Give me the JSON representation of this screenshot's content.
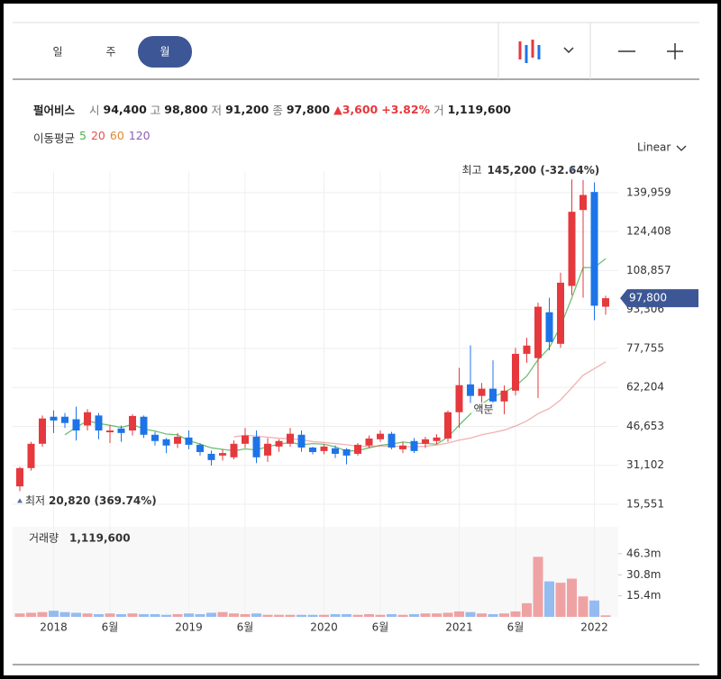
{
  "tabs": [
    "일",
    "주",
    "월"
  ],
  "scale_mode": "Linear",
  "header": {
    "name": "펄어비스",
    "quote": [
      {
        "label": "시",
        "value": "94,400"
      },
      {
        "label": "고",
        "value": "98,800"
      },
      {
        "label": "저",
        "value": "91,200"
      },
      {
        "label": "종",
        "value": "97,800"
      }
    ],
    "change": "3,600",
    "change_pct": "+3.82%",
    "volume_label": "거",
    "volume": "1,119,600"
  },
  "ma_legend": {
    "label": "이동평균",
    "periods": [
      5,
      20,
      60,
      120
    ],
    "colors": [
      "#4caf50",
      "#e0524f",
      "#e08a2e",
      "#8e5fb8"
    ]
  },
  "chart_data": {
    "type": "candlestick",
    "categories": [
      null,
      null,
      null,
      "2018",
      null,
      null,
      null,
      null,
      "6월",
      null,
      null,
      null,
      null,
      null,
      null,
      "2019",
      null,
      null,
      null,
      null,
      "6월",
      null,
      null,
      null,
      null,
      null,
      null,
      "2020",
      null,
      null,
      null,
      null,
      "6월",
      null,
      null,
      null,
      null,
      null,
      null,
      "2021",
      null,
      null,
      null,
      null,
      "6월",
      null,
      null,
      null,
      null,
      null,
      null,
      "2022",
      null
    ],
    "open": [
      22700,
      30000,
      39700,
      50500,
      50500,
      49500,
      47000,
      51000,
      44300,
      45800,
      45000,
      50500,
      43300,
      41500,
      39700,
      42200,
      39300,
      35700,
      35000,
      34300,
      39700,
      42500,
      35000,
      38600,
      39700,
      43300,
      38200,
      36800,
      37900,
      37500,
      35700,
      39000,
      41500,
      43700,
      37500,
      40800,
      39700,
      40800,
      41800,
      52300,
      63400,
      58800,
      61700,
      56600,
      60900,
      75600,
      73900,
      92200,
      79600,
      102700,
      133000,
      140200,
      94400
    ],
    "high": [
      30500,
      40500,
      51000,
      53000,
      52000,
      54500,
      53500,
      52000,
      47000,
      47000,
      51500,
      51000,
      44500,
      42000,
      44000,
      45000,
      40000,
      37000,
      37500,
      41000,
      46000,
      45000,
      42000,
      41500,
      46000,
      45000,
      38500,
      39500,
      39000,
      38000,
      40000,
      43000,
      45000,
      44500,
      40500,
      42000,
      42500,
      43500,
      53000,
      70000,
      79000,
      64000,
      73000,
      63000,
      78000,
      82000,
      96000,
      98000,
      108000,
      145200,
      145000,
      144000,
      98800
    ],
    "low": [
      20820,
      29000,
      38500,
      44000,
      46000,
      41000,
      45000,
      41500,
      40000,
      40500,
      43000,
      42000,
      39000,
      36000,
      38000,
      37500,
      35000,
      31000,
      33000,
      33500,
      38000,
      32000,
      32500,
      36500,
      38500,
      36500,
      35500,
      35500,
      34000,
      31500,
      35000,
      38000,
      40500,
      37500,
      36000,
      36000,
      38000,
      39500,
      40500,
      46000,
      56000,
      54000,
      54000,
      51500,
      59000,
      72000,
      58000,
      77000,
      78000,
      99000,
      98000,
      89000,
      91200
    ],
    "close": [
      30000,
      39700,
      49800,
      49000,
      48000,
      45000,
      52300,
      45000,
      45000,
      44000,
      50800,
      43300,
      40800,
      39000,
      42500,
      39300,
      36400,
      33200,
      36000,
      39700,
      43000,
      34300,
      39700,
      40800,
      43700,
      38200,
      36400,
      38600,
      35700,
      35000,
      39300,
      41800,
      43700,
      38200,
      39000,
      36800,
      41500,
      42200,
      52300,
      63100,
      58800,
      61700,
      56600,
      60900,
      75600,
      78900,
      94400,
      80300,
      104000,
      132300,
      139000,
      94800,
      97800
    ],
    "volume": [
      2500000,
      3000000,
      3500000,
      4500000,
      3500000,
      3000000,
      2500000,
      2000000,
      2500000,
      2000000,
      2500000,
      2000000,
      2000000,
      1500000,
      2000000,
      2500000,
      2000000,
      3000000,
      3500000,
      2500000,
      2000000,
      2500000,
      1500000,
      1500000,
      1500000,
      1500000,
      1500000,
      1500000,
      2000000,
      2000000,
      1500000,
      2000000,
      1500000,
      2000000,
      1500000,
      2000000,
      2500000,
      2500000,
      3000000,
      4000000,
      3500000,
      2500000,
      2000000,
      2500000,
      4000000,
      10000000,
      44000000,
      26000000,
      25000000,
      28000000,
      15000000,
      12000000,
      1119600
    ],
    "up_color": "#e5393e",
    "down_color": "#1d74e8",
    "ylim": [
      8000,
      155000
    ],
    "yticks": [
      {
        "value": 15551,
        "label": "15,551"
      },
      {
        "value": 31102,
        "label": "31,102"
      },
      {
        "value": 46653,
        "label": "46,653"
      },
      {
        "value": 62204,
        "label": "62,204"
      },
      {
        "value": 77755,
        "label": "77,755"
      },
      {
        "value": 93306,
        "label": "93,306"
      },
      {
        "value": 108857,
        "label": "108,857"
      },
      {
        "value": 124408,
        "label": "124,408"
      },
      {
        "value": 139959,
        "label": "139,959"
      }
    ],
    "volume_label": "거래량",
    "volume_value_label": "1,119,600",
    "vlim": [
      0,
      66000000
    ],
    "vticks": [
      {
        "value": 15400000,
        "label": "15.4m"
      },
      {
        "value": 30800000,
        "label": "30.8m"
      },
      {
        "value": 46300000,
        "label": "46.3m"
      }
    ],
    "grid": true,
    "annotations": {
      "high_label": "최고",
      "high_text": "145,200 (-32.64%)",
      "low_label": "최저",
      "low_text": "20,820 (369.74%)",
      "split": "액분",
      "last_price": "97,800"
    }
  }
}
